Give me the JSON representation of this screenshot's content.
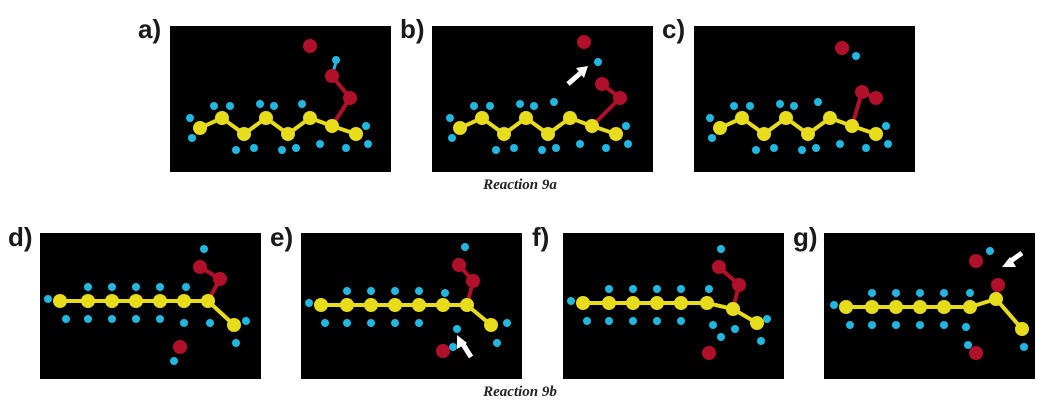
{
  "panels": [
    {
      "label": "a)"
    },
    {
      "label": "b)"
    },
    {
      "label": "c)"
    },
    {
      "label": "d)"
    },
    {
      "label": "e)"
    },
    {
      "label": "f)"
    },
    {
      "label": "g)"
    }
  ],
  "captions": {
    "top": "Reaction 9a",
    "bottom": "Reaction 9b"
  },
  "colors": {
    "carbon": "#e6dc1c",
    "hydrogen": "#20b8e0",
    "oxygen": "#b0102a",
    "arrow": "#ffffff",
    "background": "#000000"
  }
}
